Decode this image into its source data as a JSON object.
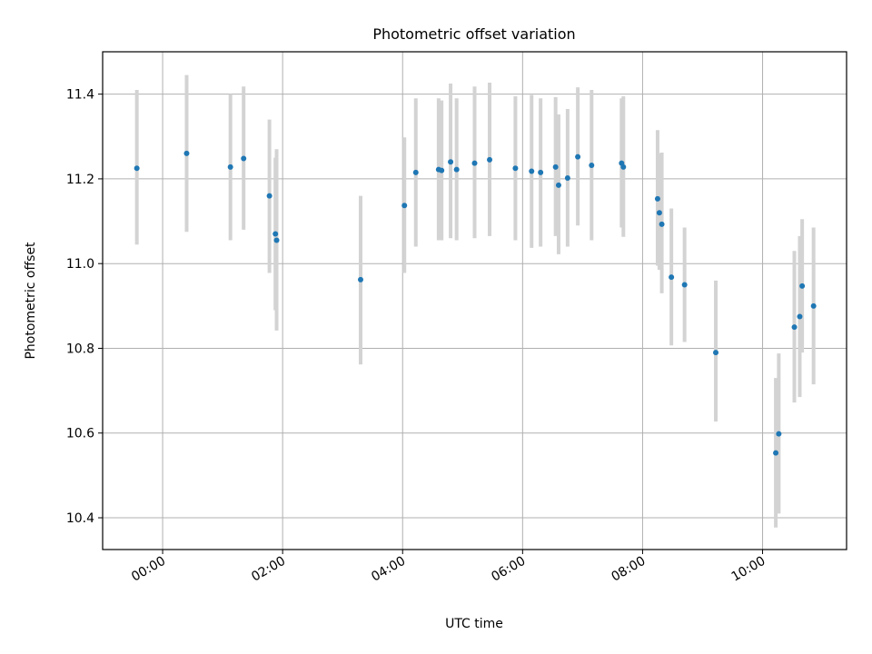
{
  "chart_data": {
    "type": "scatter",
    "title": "Photometric offset variation",
    "xlabel": "UTC time",
    "ylabel": "Photometric offset",
    "x_unit": "hours UTC",
    "xlim": [
      -1.0,
      11.4
    ],
    "ylim": [
      10.325,
      11.5
    ],
    "x_ticks": [
      {
        "value": 0,
        "label": "00:00"
      },
      {
        "value": 2,
        "label": "02:00"
      },
      {
        "value": 4,
        "label": "04:00"
      },
      {
        "value": 6,
        "label": "06:00"
      },
      {
        "value": 8,
        "label": "08:00"
      },
      {
        "value": 10,
        "label": "10:00"
      }
    ],
    "y_ticks": [
      {
        "value": 10.4,
        "label": "10.4"
      },
      {
        "value": 10.6,
        "label": "10.6"
      },
      {
        "value": 10.8,
        "label": "10.8"
      },
      {
        "value": 11.0,
        "label": "11.0"
      },
      {
        "value": 11.2,
        "label": "11.2"
      },
      {
        "value": 11.4,
        "label": "11.4"
      }
    ],
    "grid": true,
    "colors": {
      "point": "#1f77b4",
      "errorbar": "#d3d3d3",
      "grid": "#b0b0b0"
    },
    "points": [
      {
        "x": -0.43,
        "y": 11.225,
        "lo": 11.045,
        "hi": 11.41
      },
      {
        "x": 0.4,
        "y": 11.26,
        "lo": 11.075,
        "hi": 11.445
      },
      {
        "x": 1.13,
        "y": 11.228,
        "lo": 11.055,
        "hi": 11.4
      },
      {
        "x": 1.35,
        "y": 11.248,
        "lo": 11.08,
        "hi": 11.418
      },
      {
        "x": 1.78,
        "y": 11.16,
        "lo": 10.978,
        "hi": 11.34
      },
      {
        "x": 1.88,
        "y": 11.07,
        "lo": 10.89,
        "hi": 11.25
      },
      {
        "x": 1.9,
        "y": 11.055,
        "lo": 10.842,
        "hi": 11.27
      },
      {
        "x": 3.3,
        "y": 10.962,
        "lo": 10.762,
        "hi": 11.16
      },
      {
        "x": 4.03,
        "y": 11.137,
        "lo": 10.978,
        "hi": 11.298
      },
      {
        "x": 4.22,
        "y": 11.215,
        "lo": 11.04,
        "hi": 11.39
      },
      {
        "x": 4.6,
        "y": 11.222,
        "lo": 11.055,
        "hi": 11.39
      },
      {
        "x": 4.65,
        "y": 11.22,
        "lo": 11.055,
        "hi": 11.385
      },
      {
        "x": 4.8,
        "y": 11.24,
        "lo": 11.06,
        "hi": 11.425
      },
      {
        "x": 4.9,
        "y": 11.222,
        "lo": 11.055,
        "hi": 11.39
      },
      {
        "x": 5.2,
        "y": 11.237,
        "lo": 11.06,
        "hi": 11.418
      },
      {
        "x": 5.45,
        "y": 11.245,
        "lo": 11.065,
        "hi": 11.427
      },
      {
        "x": 5.88,
        "y": 11.225,
        "lo": 11.055,
        "hi": 11.395
      },
      {
        "x": 6.15,
        "y": 11.218,
        "lo": 11.037,
        "hi": 11.398
      },
      {
        "x": 6.3,
        "y": 11.215,
        "lo": 11.04,
        "hi": 11.39
      },
      {
        "x": 6.55,
        "y": 11.228,
        "lo": 11.065,
        "hi": 11.393
      },
      {
        "x": 6.6,
        "y": 11.185,
        "lo": 11.022,
        "hi": 11.352
      },
      {
        "x": 6.75,
        "y": 11.202,
        "lo": 11.04,
        "hi": 11.365
      },
      {
        "x": 6.92,
        "y": 11.252,
        "lo": 11.09,
        "hi": 11.416
      },
      {
        "x": 7.15,
        "y": 11.232,
        "lo": 11.055,
        "hi": 11.41
      },
      {
        "x": 7.65,
        "y": 11.237,
        "lo": 11.085,
        "hi": 11.39
      },
      {
        "x": 7.68,
        "y": 11.228,
        "lo": 11.063,
        "hi": 11.395
      },
      {
        "x": 8.25,
        "y": 11.153,
        "lo": 10.995,
        "hi": 11.315
      },
      {
        "x": 8.28,
        "y": 11.12,
        "lo": 10.985,
        "hi": 11.26
      },
      {
        "x": 8.32,
        "y": 11.093,
        "lo": 10.93,
        "hi": 11.262
      },
      {
        "x": 8.48,
        "y": 10.968,
        "lo": 10.807,
        "hi": 11.13
      },
      {
        "x": 8.7,
        "y": 10.95,
        "lo": 10.815,
        "hi": 11.085
      },
      {
        "x": 9.22,
        "y": 10.79,
        "lo": 10.627,
        "hi": 10.96
      },
      {
        "x": 10.22,
        "y": 10.553,
        "lo": 10.377,
        "hi": 10.73
      },
      {
        "x": 10.27,
        "y": 10.598,
        "lo": 10.41,
        "hi": 10.788
      },
      {
        "x": 10.53,
        "y": 10.85,
        "lo": 10.672,
        "hi": 11.03
      },
      {
        "x": 10.62,
        "y": 10.875,
        "lo": 10.685,
        "hi": 11.065
      },
      {
        "x": 10.66,
        "y": 10.947,
        "lo": 10.79,
        "hi": 11.105
      },
      {
        "x": 10.85,
        "y": 10.9,
        "lo": 10.715,
        "hi": 11.085
      }
    ]
  }
}
